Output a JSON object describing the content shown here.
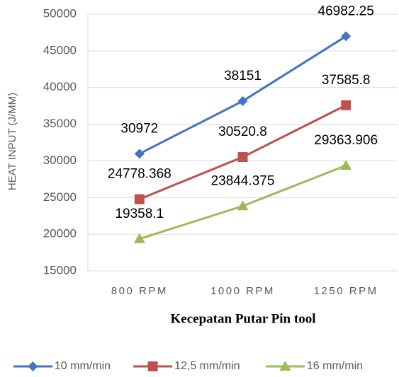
{
  "chart_data": {
    "type": "line",
    "x_label": "Kecepatan Putar Pin tool",
    "y_label": "HEAT INPUT (J/MM)",
    "categories": [
      "800 RPM",
      "1000 RPM",
      "1250 RPM"
    ],
    "series": [
      {
        "name": "10 mm/min",
        "color": "#4472c4",
        "marker": "diamond",
        "values": [
          30972,
          38151,
          46982.25
        ]
      },
      {
        "name": "12,5 mm/min",
        "color": "#c0504d",
        "marker": "square",
        "values": [
          24778.368,
          30520.8,
          37585.8
        ]
      },
      {
        "name": "16 mm/min",
        "color": "#9bbb59",
        "marker": "triangle",
        "values": [
          19358.1,
          23844.375,
          29363.906
        ]
      }
    ],
    "ylim": [
      15000,
      50000
    ],
    "yticks": [
      15000,
      20000,
      25000,
      30000,
      35000,
      40000,
      45000,
      50000
    ],
    "grid": true,
    "legend": "bottom"
  }
}
